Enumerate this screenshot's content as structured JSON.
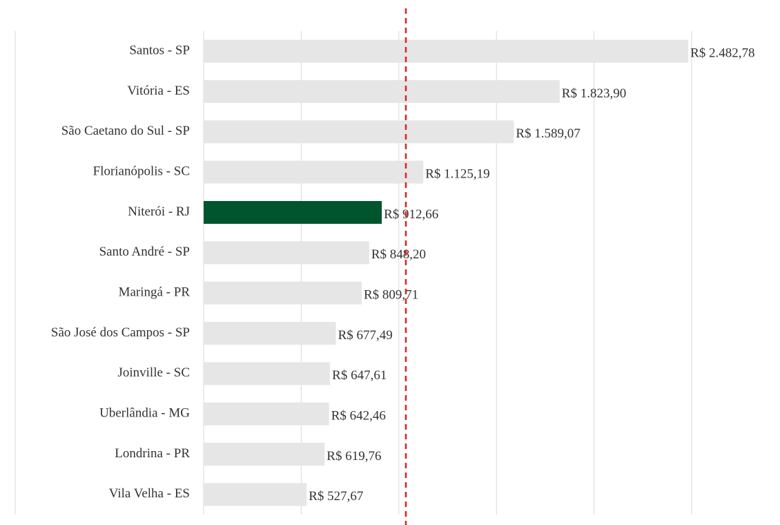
{
  "chart_data": {
    "type": "barh",
    "categories": [
      "Santos - SP",
      "Vitória - ES",
      "São Caetano do Sul - SP",
      "Florianópolis - SC",
      "Niterói - RJ",
      "Santo André - SP",
      "Maringá - PR",
      "São José dos Campos - SP",
      "Joinville - SC",
      "Uberlândia - MG",
      "Londrina - PR",
      "Vila Velha - ES"
    ],
    "values": [
      2482.78,
      1823.9,
      1589.07,
      1125.19,
      912.66,
      848.2,
      809.71,
      677.49,
      647.61,
      642.46,
      619.76,
      527.67
    ],
    "value_labels": [
      "R$ 2.482,78",
      "R$ 1.823,90",
      "R$ 1.589,07",
      "R$ 1.125,19",
      "R$ 912,66",
      "R$ 848,20",
      "R$ 809,71",
      "R$ 677,49",
      "R$ 647,61",
      "R$ 642,46",
      "R$ 619,76",
      "R$ 527,67"
    ],
    "colors": [
      "#e6e6e6",
      "#e6e6e6",
      "#e6e6e6",
      "#e6e6e6",
      "#00552e",
      "#e6e6e6",
      "#e6e6e6",
      "#e6e6e6",
      "#e6e6e6",
      "#e6e6e6",
      "#e6e6e6",
      "#e6e6e6"
    ],
    "xlim": [
      0,
      2500
    ],
    "xticks": [
      0,
      500,
      1000,
      1500,
      2000,
      2500
    ],
    "grid": true,
    "reference_line": {
      "value": 1036,
      "color": "#e02020"
    }
  }
}
